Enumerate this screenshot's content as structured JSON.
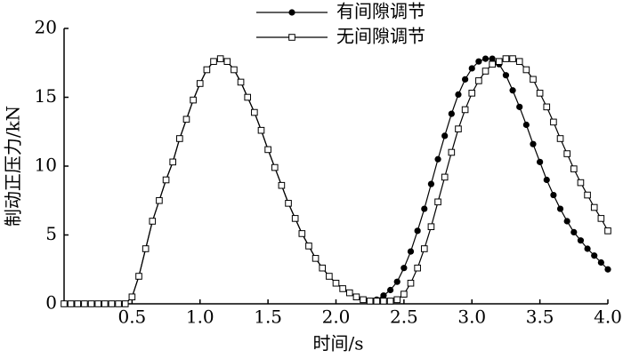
{
  "chart_data": {
    "type": "line",
    "x_label": "时间/s",
    "y_label": "制动正压力/kN",
    "x": [
      0,
      0.05,
      0.1,
      0.15,
      0.2,
      0.25,
      0.3,
      0.35,
      0.4,
      0.45,
      0.5,
      0.55,
      0.6,
      0.65,
      0.7,
      0.75,
      0.8,
      0.85,
      0.9,
      0.95,
      1.0,
      1.05,
      1.1,
      1.15,
      1.2,
      1.25,
      1.3,
      1.35,
      1.4,
      1.45,
      1.5,
      1.55,
      1.6,
      1.65,
      1.7,
      1.75,
      1.8,
      1.85,
      1.9,
      1.95,
      2.0,
      2.05,
      2.1,
      2.15,
      2.2,
      2.25,
      2.3,
      2.35,
      2.4,
      2.45,
      2.5,
      2.55,
      2.6,
      2.65,
      2.7,
      2.75,
      2.8,
      2.85,
      2.9,
      2.95,
      3.0,
      3.05,
      3.1,
      3.15,
      3.2,
      3.25,
      3.3,
      3.35,
      3.4,
      3.45,
      3.5,
      3.55,
      3.6,
      3.65,
      3.7,
      3.75,
      3.8,
      3.85,
      3.9,
      3.95,
      4.0
    ],
    "series": [
      {
        "name": "有间隙调节",
        "color": "#000000",
        "marker": "circle",
        "values": [
          0,
          0,
          0,
          0,
          0,
          0,
          0,
          0,
          0,
          0,
          0.5,
          2,
          4,
          6,
          7.5,
          9,
          10.3,
          12,
          13.4,
          14.8,
          16,
          17,
          17.6,
          17.8,
          17.6,
          17,
          16.1,
          15,
          13.9,
          12.6,
          11.2,
          9.9,
          8.6,
          7.3,
          6.2,
          5.1,
          4.2,
          3.3,
          2.6,
          2,
          1.5,
          1.1,
          0.8,
          0.5,
          0.3,
          0.2,
          0.3,
          0.6,
          1.0,
          1.6,
          2.6,
          3.8,
          5.3,
          6.9,
          8.7,
          10.5,
          12.2,
          13.8,
          15.2,
          16.3,
          17.1,
          17.6,
          17.8,
          17.8,
          17.4,
          16.6,
          15.5,
          14.3,
          13,
          11.6,
          10.3,
          9,
          7.9,
          6.9,
          6,
          5.2,
          4.6,
          4,
          3.5,
          3,
          2.5
        ]
      },
      {
        "name": "无间隙调节",
        "color": "#000000",
        "marker": "square",
        "values": [
          0,
          0,
          0,
          0,
          0,
          0,
          0,
          0,
          0,
          0,
          0.5,
          2,
          4,
          6,
          7.5,
          9,
          10.3,
          12,
          13.4,
          14.8,
          16,
          17,
          17.6,
          17.8,
          17.6,
          17,
          16.1,
          15,
          13.9,
          12.6,
          11.2,
          9.9,
          8.6,
          7.3,
          6.2,
          5.1,
          4.2,
          3.3,
          2.6,
          2,
          1.5,
          1.1,
          0.8,
          0.5,
          0.3,
          0.2,
          0.2,
          0.2,
          0.2,
          0.3,
          0.7,
          1.5,
          2.6,
          4,
          5.6,
          7.4,
          9.2,
          11,
          12.7,
          14.1,
          15.3,
          16.2,
          16.9,
          17.4,
          17.6,
          17.8,
          17.8,
          17.6,
          17,
          16.3,
          15.3,
          14.3,
          13.2,
          12,
          10.9,
          9.8,
          8.8,
          7.9,
          7,
          6.2,
          5.3
        ]
      }
    ],
    "xlim": [
      0,
      4
    ],
    "ylim": [
      0,
      20
    ],
    "xticks": [
      0.5,
      {
        "value": 1,
        "label": "1.0"
      },
      1.5,
      {
        "value": 2,
        "label": "2.0"
      },
      2.5,
      {
        "value": 3,
        "label": "3.0"
      },
      3.5,
      {
        "value": 4,
        "label": "4.0"
      }
    ],
    "yticks": [
      0,
      5,
      10,
      15,
      20
    ]
  }
}
